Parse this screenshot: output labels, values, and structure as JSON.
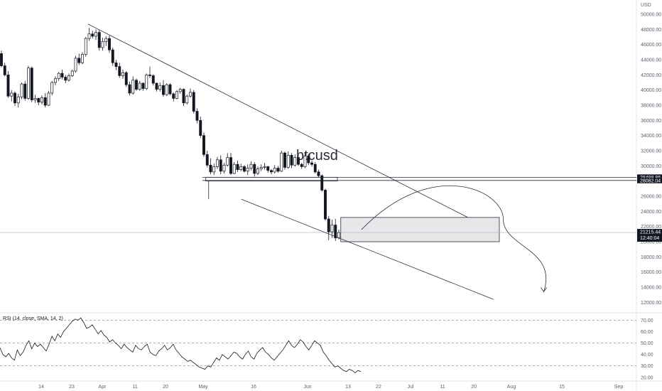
{
  "chart_data": [
    {
      "type": "candlestick",
      "title": "",
      "watermark": "btcusd",
      "currency_label": "USD",
      "y_ticks": [
        "50000.00",
        "48000.00",
        "46000.00",
        "44000.00",
        "42000.00",
        "40000.00",
        "38000.00",
        "36000.00",
        "34000.00",
        "32000.00",
        "30000.00",
        "28000.00",
        "26000.00",
        "24000.00",
        "22000.00",
        "20000.00",
        "18000.00",
        "16000.00",
        "14000.00",
        "12000.00"
      ],
      "ylim": [
        11000,
        51500
      ],
      "x_ticks": [
        "14",
        "23",
        "Apr",
        "11",
        "20",
        "May",
        "16",
        "Jun",
        "13",
        "22",
        "Jul",
        "11",
        "20",
        "Aug",
        "15",
        "Sep"
      ],
      "price_tags": [
        {
          "value": "28498.86",
          "price": 28498.86
        },
        {
          "value": "28082.04",
          "price": 28082.04
        },
        {
          "value": "21215.44",
          "price": 21215.44,
          "sub": "12:40:04"
        }
      ],
      "candles": [
        {
          "o": 44800,
          "h": 45200,
          "l": 43000,
          "c": 43200
        },
        {
          "o": 43200,
          "h": 43600,
          "l": 41800,
          "c": 42000
        },
        {
          "o": 42000,
          "h": 42500,
          "l": 39000,
          "c": 39200
        },
        {
          "o": 39200,
          "h": 40000,
          "l": 38500,
          "c": 39600
        },
        {
          "o": 39600,
          "h": 39800,
          "l": 37900,
          "c": 38300
        },
        {
          "o": 38300,
          "h": 39500,
          "l": 37700,
          "c": 39100
        },
        {
          "o": 39100,
          "h": 41000,
          "l": 38800,
          "c": 40800
        },
        {
          "o": 40800,
          "h": 41200,
          "l": 38600,
          "c": 38900
        },
        {
          "o": 38900,
          "h": 43200,
          "l": 38700,
          "c": 42900
        },
        {
          "o": 42900,
          "h": 43100,
          "l": 38400,
          "c": 38700
        },
        {
          "o": 38700,
          "h": 39400,
          "l": 38300,
          "c": 38900
        },
        {
          "o": 38900,
          "h": 39000,
          "l": 38000,
          "c": 38400
        },
        {
          "o": 38400,
          "h": 39300,
          "l": 38100,
          "c": 39000
        },
        {
          "o": 39000,
          "h": 39600,
          "l": 37700,
          "c": 38000
        },
        {
          "o": 38000,
          "h": 39900,
          "l": 37900,
          "c": 39600
        },
        {
          "o": 39600,
          "h": 41200,
          "l": 39300,
          "c": 41000
        },
        {
          "o": 41000,
          "h": 41800,
          "l": 40600,
          "c": 41500
        },
        {
          "o": 41500,
          "h": 42400,
          "l": 41200,
          "c": 42200
        },
        {
          "o": 42200,
          "h": 42700,
          "l": 41400,
          "c": 41700
        },
        {
          "o": 41700,
          "h": 42000,
          "l": 40900,
          "c": 41300
        },
        {
          "o": 41300,
          "h": 42200,
          "l": 41100,
          "c": 41900
        },
        {
          "o": 41900,
          "h": 42700,
          "l": 41700,
          "c": 42500
        },
        {
          "o": 42500,
          "h": 44500,
          "l": 42300,
          "c": 44200
        },
        {
          "o": 44200,
          "h": 44800,
          "l": 43300,
          "c": 43600
        },
        {
          "o": 43600,
          "h": 45000,
          "l": 43400,
          "c": 44700
        },
        {
          "o": 44700,
          "h": 47000,
          "l": 44400,
          "c": 46800
        },
        {
          "o": 46800,
          "h": 48200,
          "l": 46500,
          "c": 47400
        },
        {
          "o": 47400,
          "h": 47800,
          "l": 46800,
          "c": 47100
        },
        {
          "o": 47100,
          "h": 48000,
          "l": 46600,
          "c": 47600
        },
        {
          "o": 47600,
          "h": 47900,
          "l": 45200,
          "c": 45600
        },
        {
          "o": 45600,
          "h": 46900,
          "l": 45200,
          "c": 46400
        },
        {
          "o": 46400,
          "h": 47100,
          "l": 45800,
          "c": 46800
        },
        {
          "o": 46800,
          "h": 47200,
          "l": 44900,
          "c": 45300
        },
        {
          "o": 45300,
          "h": 45600,
          "l": 43200,
          "c": 43600
        },
        {
          "o": 43600,
          "h": 44000,
          "l": 42600,
          "c": 43100
        },
        {
          "o": 43100,
          "h": 43600,
          "l": 41600,
          "c": 41900
        },
        {
          "o": 41900,
          "h": 42700,
          "l": 41500,
          "c": 42300
        },
        {
          "o": 42300,
          "h": 42500,
          "l": 40400,
          "c": 40700
        },
        {
          "o": 40700,
          "h": 41100,
          "l": 39300,
          "c": 39600
        },
        {
          "o": 39600,
          "h": 41800,
          "l": 39400,
          "c": 41300
        },
        {
          "o": 41300,
          "h": 41500,
          "l": 39900,
          "c": 40100
        },
        {
          "o": 40100,
          "h": 41200,
          "l": 39900,
          "c": 40900
        },
        {
          "o": 40900,
          "h": 41000,
          "l": 39900,
          "c": 40200
        },
        {
          "o": 40200,
          "h": 42200,
          "l": 40000,
          "c": 42000
        },
        {
          "o": 42000,
          "h": 43100,
          "l": 41600,
          "c": 41900
        },
        {
          "o": 41900,
          "h": 42100,
          "l": 40600,
          "c": 40900
        },
        {
          "o": 40900,
          "h": 41000,
          "l": 39800,
          "c": 40100
        },
        {
          "o": 40100,
          "h": 41000,
          "l": 39800,
          "c": 40600
        },
        {
          "o": 40600,
          "h": 41300,
          "l": 39100,
          "c": 39400
        },
        {
          "o": 39400,
          "h": 40900,
          "l": 39200,
          "c": 40700
        },
        {
          "o": 40700,
          "h": 40900,
          "l": 39300,
          "c": 39500
        },
        {
          "o": 39500,
          "h": 39700,
          "l": 38500,
          "c": 38900
        },
        {
          "o": 38900,
          "h": 40000,
          "l": 38800,
          "c": 39800
        },
        {
          "o": 39800,
          "h": 40300,
          "l": 39500,
          "c": 40100
        },
        {
          "o": 40100,
          "h": 40200,
          "l": 37900,
          "c": 38300
        },
        {
          "o": 38300,
          "h": 39400,
          "l": 38100,
          "c": 39200
        },
        {
          "o": 39200,
          "h": 40200,
          "l": 39000,
          "c": 39700
        },
        {
          "o": 39700,
          "h": 40000,
          "l": 36900,
          "c": 37200
        },
        {
          "o": 37200,
          "h": 37600,
          "l": 35600,
          "c": 36000
        },
        {
          "o": 36000,
          "h": 36500,
          "l": 33700,
          "c": 34000
        },
        {
          "o": 34000,
          "h": 34400,
          "l": 31200,
          "c": 31500
        },
        {
          "o": 31500,
          "h": 32000,
          "l": 29800,
          "c": 30100
        },
        {
          "o": 30100,
          "h": 31000,
          "l": 28900,
          "c": 29200
        },
        {
          "o": 29200,
          "h": 30300,
          "l": 28800,
          "c": 29900
        },
        {
          "o": 29900,
          "h": 31200,
          "l": 29600,
          "c": 30800
        },
        {
          "o": 30800,
          "h": 31400,
          "l": 28900,
          "c": 29300
        },
        {
          "o": 29300,
          "h": 30400,
          "l": 29000,
          "c": 30100
        },
        {
          "o": 30100,
          "h": 31700,
          "l": 29900,
          "c": 31100
        },
        {
          "o": 31100,
          "h": 31700,
          "l": 28800,
          "c": 29000
        },
        {
          "o": 29000,
          "h": 30500,
          "l": 28900,
          "c": 30200
        },
        {
          "o": 30200,
          "h": 30700,
          "l": 29200,
          "c": 29500
        },
        {
          "o": 29500,
          "h": 30300,
          "l": 29300,
          "c": 29900
        },
        {
          "o": 29900,
          "h": 30100,
          "l": 29100,
          "c": 29300
        },
        {
          "o": 29300,
          "h": 30200,
          "l": 28800,
          "c": 29700
        },
        {
          "o": 29700,
          "h": 30600,
          "l": 29400,
          "c": 30200
        },
        {
          "o": 30200,
          "h": 30500,
          "l": 28600,
          "c": 29000
        },
        {
          "o": 29000,
          "h": 29900,
          "l": 28800,
          "c": 29600
        },
        {
          "o": 29600,
          "h": 30200,
          "l": 29300,
          "c": 29800
        },
        {
          "o": 29800,
          "h": 30400,
          "l": 29500,
          "c": 29900
        },
        {
          "o": 29900,
          "h": 30000,
          "l": 29100,
          "c": 29400
        },
        {
          "o": 29400,
          "h": 29600,
          "l": 28900,
          "c": 29200
        },
        {
          "o": 29200,
          "h": 30100,
          "l": 29000,
          "c": 29700
        },
        {
          "o": 29700,
          "h": 30000,
          "l": 29100,
          "c": 29300
        },
        {
          "o": 29300,
          "h": 32000,
          "l": 29200,
          "c": 31700
        },
        {
          "o": 31700,
          "h": 31900,
          "l": 29500,
          "c": 29800
        },
        {
          "o": 29800,
          "h": 31900,
          "l": 29600,
          "c": 31400
        },
        {
          "o": 31400,
          "h": 31700,
          "l": 29700,
          "c": 30100
        },
        {
          "o": 30100,
          "h": 31500,
          "l": 29900,
          "c": 31100
        },
        {
          "o": 31100,
          "h": 31500,
          "l": 30000,
          "c": 30200
        },
        {
          "o": 30200,
          "h": 30400,
          "l": 29600,
          "c": 29900
        },
        {
          "o": 29900,
          "h": 31800,
          "l": 29700,
          "c": 31300
        },
        {
          "o": 31300,
          "h": 31600,
          "l": 30100,
          "c": 30400
        },
        {
          "o": 30400,
          "h": 30700,
          "l": 29900,
          "c": 30200
        },
        {
          "o": 30200,
          "h": 30500,
          "l": 29000,
          "c": 29200
        },
        {
          "o": 29200,
          "h": 29500,
          "l": 28500,
          "c": 28700
        },
        {
          "o": 28700,
          "h": 28900,
          "l": 26600,
          "c": 26800
        },
        {
          "o": 26800,
          "h": 27000,
          "l": 22800,
          "c": 23000
        },
        {
          "o": 23000,
          "h": 23400,
          "l": 20200,
          "c": 21300
        },
        {
          "o": 21300,
          "h": 22900,
          "l": 20500,
          "c": 22200
        },
        {
          "o": 22200,
          "h": 23000,
          "l": 20100,
          "c": 20500
        },
        {
          "o": 20500,
          "h": 21600,
          "l": 20300,
          "c": 21215
        }
      ],
      "annotations": {
        "upper_trendline": [
          {
            "i": 0,
            "p": 48700
          },
          {
            "i": 145,
            "p": 23200
          }
        ],
        "lower_trendline": [
          {
            "i": 61,
            "p": 25600
          },
          {
            "i": 161,
            "p": 12400
          }
        ],
        "support_lines": [
          28498.86,
          28082.04,
          21215.44
        ],
        "small_bracket": {
          "i0": 61,
          "i1": 100,
          "top": 28500,
          "bottom": 28000
        },
        "target_box": {
          "i0": 101,
          "i1": 148,
          "top": 23200,
          "bottom": 20000
        },
        "projection_arc": [
          {
            "i": 104,
            "p": 21600
          },
          {
            "i": 125,
            "p": 25600
          },
          {
            "i": 146,
            "p": 23000
          },
          {
            "i": 158,
            "p": 13400
          }
        ]
      }
    },
    {
      "type": "line",
      "title": "RSI (14, close, SMA, 14, 2)",
      "y_ticks": [
        "70.00",
        "60.00",
        "50.00",
        "40.00",
        "30.00",
        "20.00"
      ],
      "ylim": [
        18,
        74
      ],
      "levels": [
        70,
        50,
        30
      ],
      "series": [
        {
          "values": [
            46,
            40,
            38,
            41,
            37,
            35,
            44,
            39,
            42,
            48,
            52,
            45,
            50,
            47,
            49,
            46,
            43,
            49,
            56,
            52,
            58,
            55,
            60,
            63,
            66,
            69,
            71,
            70,
            72,
            68,
            63,
            64,
            66,
            62,
            58,
            61,
            57,
            55,
            51,
            53,
            50,
            48,
            45,
            49,
            46,
            44,
            42,
            48,
            45,
            44,
            47,
            49,
            42,
            40,
            39,
            43,
            45,
            48,
            44,
            46,
            49,
            44,
            41,
            38,
            36,
            34,
            35,
            33,
            31,
            29,
            28,
            27,
            30,
            29,
            33,
            37,
            35,
            40,
            38,
            36,
            39,
            42,
            41,
            38,
            36,
            40,
            43,
            38,
            36,
            41,
            44,
            46,
            42,
            40,
            37,
            35,
            38,
            41,
            44,
            48,
            52,
            48,
            46,
            49,
            53,
            51,
            47,
            44,
            48,
            52,
            50,
            48,
            42,
            39,
            35,
            32,
            29,
            30,
            28,
            26,
            25,
            27,
            26,
            24,
            26,
            25
          ]
        }
      ]
    }
  ]
}
